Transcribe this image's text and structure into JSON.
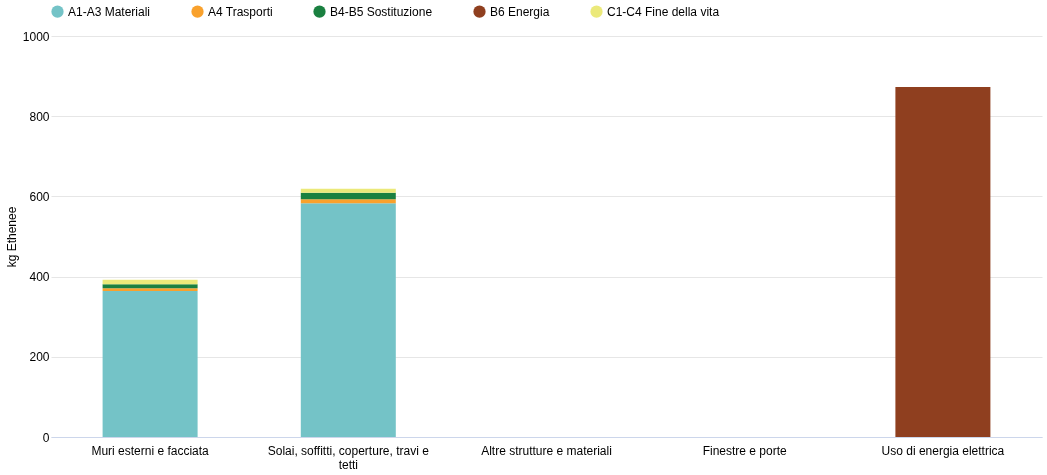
{
  "chart_data": {
    "type": "bar",
    "stacked": true,
    "ylabel": "kg Ethenee",
    "categories": [
      "Muri esterni e facciata",
      "Solai, soffitti, coperture, travi e tetti",
      "Altre strutture e materiali",
      "Finestre e porte",
      "Uso di energia elettrica"
    ],
    "series": [
      {
        "name": "A1-A3 Materiali",
        "color": "#74c3c7",
        "values": [
          364,
          583,
          null,
          null,
          null
        ]
      },
      {
        "name": "A4 Trasporti",
        "color": "#f9a12c",
        "values": [
          7,
          10,
          null,
          null,
          null
        ]
      },
      {
        "name": "B4-B5 Sostituzione",
        "color": "#1a8040",
        "values": [
          10,
          16,
          null,
          null,
          null
        ]
      },
      {
        "name": "B6 Energia",
        "color": "#8f3f1f",
        "values": [
          null,
          null,
          null,
          null,
          873
        ]
      },
      {
        "name": "C1-C4 Fine della vita",
        "color": "#ebe97a",
        "values": [
          11,
          10,
          null,
          null,
          null
        ]
      }
    ],
    "ylim": [
      0,
      1000
    ],
    "yticks": [
      0,
      200,
      400,
      600,
      800,
      1000
    ],
    "grid": "y",
    "legend": "top"
  }
}
